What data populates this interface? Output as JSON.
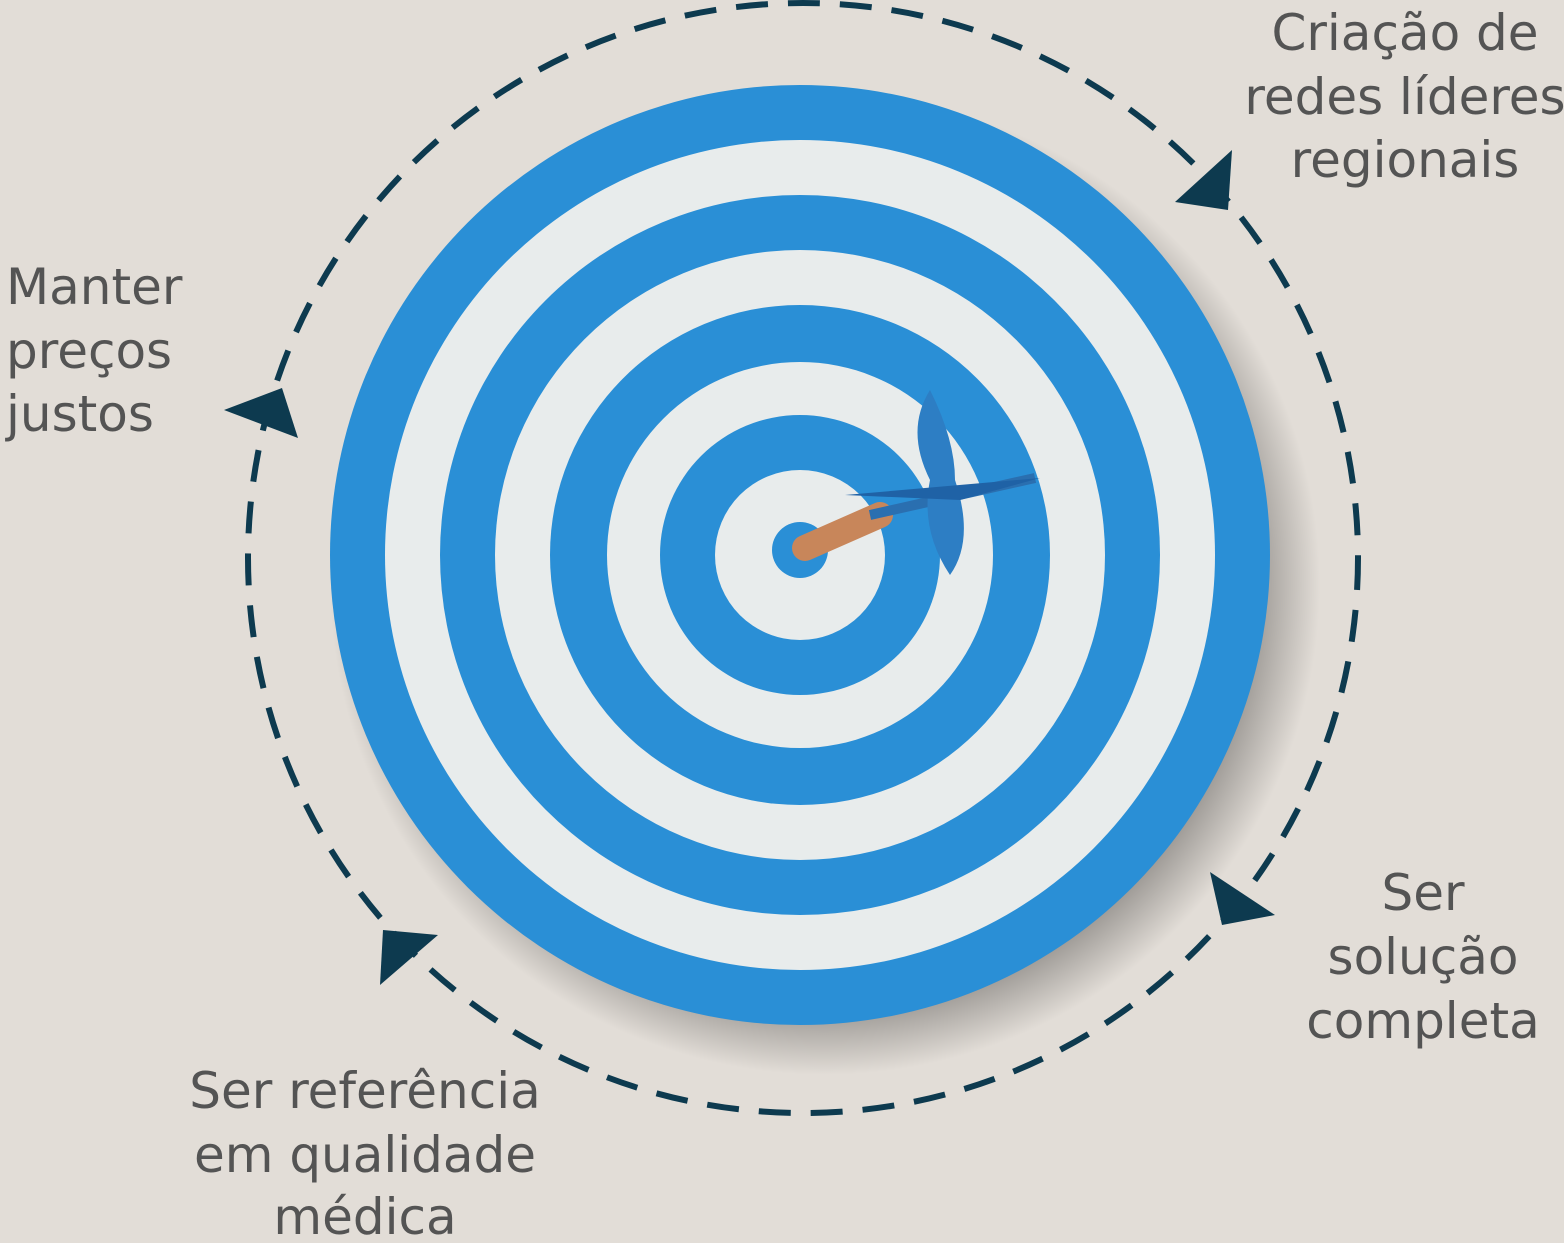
{
  "labels": [
    {
      "lines": [
        "Criação de",
        "redes líderes",
        "regionais"
      ]
    },
    {
      "lines": [
        "Manter",
        "preços",
        "justos"
      ]
    },
    {
      "lines": [
        "Ser",
        "solução",
        "completa"
      ]
    },
    {
      "lines": [
        "Ser referência",
        "em qualidade",
        "médica"
      ]
    }
  ]
}
